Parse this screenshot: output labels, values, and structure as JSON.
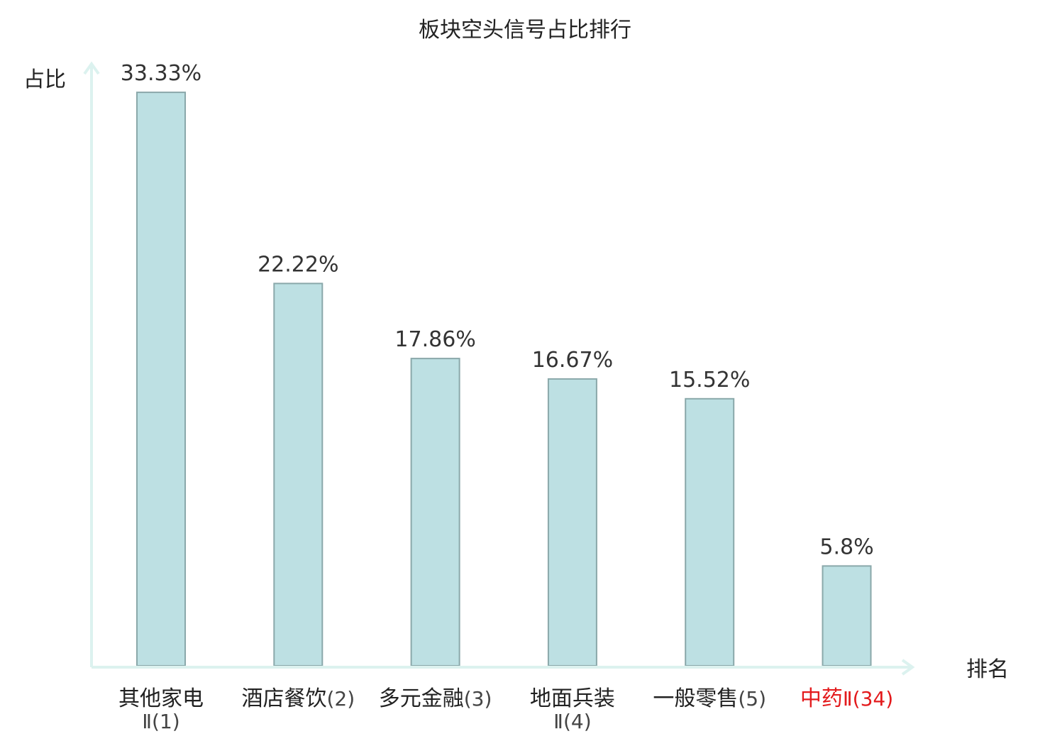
{
  "chart_data": {
    "type": "bar",
    "title": "板块空头信号占比排行",
    "ylabel": "占比",
    "xlabel": "排名",
    "ylim": [
      0,
      34
    ],
    "grid": false,
    "legend": "none",
    "categories": [
      {
        "name": "其他家电",
        "suffix": "Ⅱ(1)",
        "two_line": true,
        "highlight": false
      },
      {
        "name": "酒店餐饮",
        "suffix": "(2)",
        "two_line": false,
        "highlight": false
      },
      {
        "name": "多元金融",
        "suffix": "(3)",
        "two_line": false,
        "highlight": false
      },
      {
        "name": "地面兵装",
        "suffix": "Ⅱ(4)",
        "two_line": true,
        "highlight": false
      },
      {
        "name": "一般零售",
        "suffix": "(5)",
        "two_line": false,
        "highlight": false
      },
      {
        "name": "中药",
        "suffix": "Ⅱ(34)",
        "two_line": false,
        "highlight": true
      }
    ],
    "values": [
      33.33,
      22.22,
      17.86,
      16.67,
      15.52,
      5.8
    ],
    "value_labels": [
      "33.33%",
      "22.22%",
      "17.86%",
      "16.67%",
      "15.52%",
      "5.8%"
    ],
    "colors": {
      "bar_fill": "#bde0e3",
      "bar_stroke": "#8aa8aa",
      "axis": "#dcf2ef",
      "label_text": "#222222",
      "suffix_text": "#444444",
      "highlight_text": "#e31a1c"
    }
  }
}
